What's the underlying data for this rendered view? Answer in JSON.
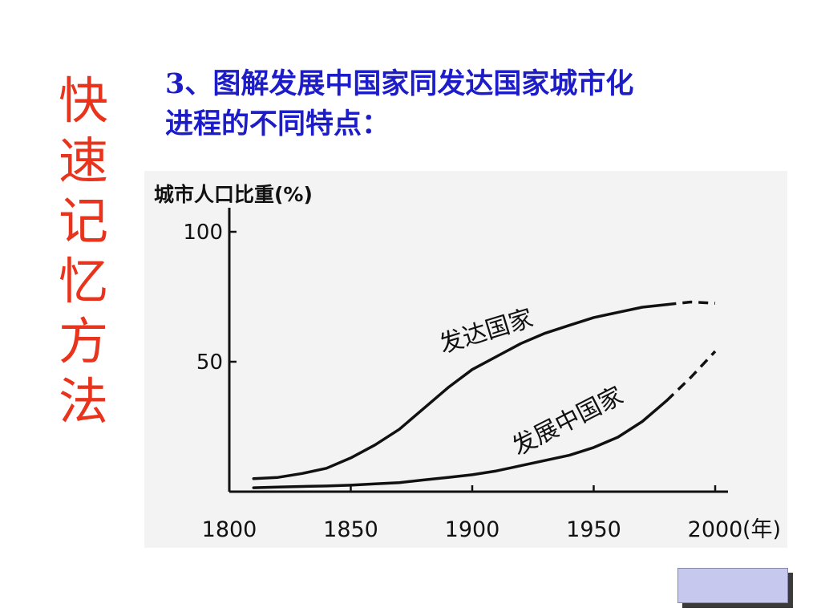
{
  "side_title": [
    "快",
    "速",
    "记",
    "忆",
    "方",
    "法"
  ],
  "heading": {
    "line1": "3、图解发展中国家同发达国家城市化",
    "line2": "进程的不同特点："
  },
  "colors": {
    "side_title": "#e8341c",
    "heading": "#1c1cc8",
    "chart_ink": "#111111",
    "chart_bg": "#f3f3f3",
    "button_fill": "#c6c8ee"
  },
  "chart_data": {
    "type": "line",
    "title": "",
    "ylabel": "城市人口比重(%)",
    "xlabel": "(年)",
    "xlim": [
      1800,
      2000
    ],
    "ylim": [
      0,
      100
    ],
    "x_ticks": [
      1800,
      1850,
      1900,
      1950,
      2000
    ],
    "x_tick_labels": [
      "1800",
      "1850",
      "1900",
      "1950",
      "2000"
    ],
    "y_ticks": [
      50,
      100
    ],
    "y_tick_labels": [
      "50",
      "100"
    ],
    "grid": false,
    "series": [
      {
        "name": "发达国家",
        "label_angle": -17,
        "x": [
          1810,
          1820,
          1830,
          1840,
          1850,
          1860,
          1870,
          1880,
          1890,
          1900,
          1910,
          1920,
          1930,
          1940,
          1950,
          1960,
          1970,
          1980
        ],
        "y": [
          5,
          5.5,
          7,
          9,
          13,
          18,
          24,
          32,
          40,
          47,
          52,
          57,
          61,
          64,
          67,
          69,
          71,
          72
        ],
        "projected_x": [
          1980,
          1990,
          2000
        ],
        "projected_y": [
          72,
          73,
          72.5
        ]
      },
      {
        "name": "发展中国家",
        "label_angle": -27,
        "x": [
          1810,
          1820,
          1830,
          1840,
          1850,
          1860,
          1870,
          1880,
          1890,
          1900,
          1910,
          1920,
          1930,
          1940,
          1950,
          1960,
          1970,
          1980
        ],
        "y": [
          1.5,
          1.8,
          2,
          2.2,
          2.5,
          3,
          3.5,
          4.5,
          5.5,
          6.5,
          8,
          10,
          12,
          14,
          17,
          21,
          27,
          35
        ],
        "projected_x": [
          1980,
          1990,
          2000
        ],
        "projected_y": [
          35,
          44,
          54
        ]
      }
    ]
  }
}
